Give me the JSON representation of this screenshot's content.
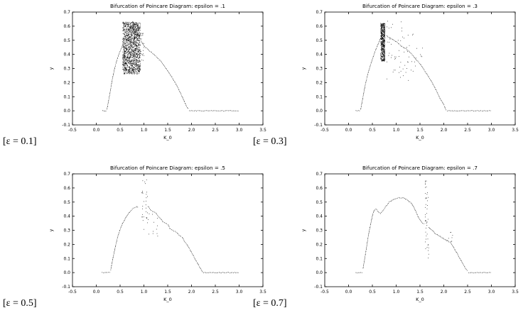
{
  "page": {
    "background": "#ffffff",
    "point_color": "#000000"
  },
  "captions": [
    {
      "text": "[ε = 0.1]"
    },
    {
      "text": "[ε = 0.3]"
    },
    {
      "text": "[ε = 0.5]"
    },
    {
      "text": "[ε = 0.7]"
    }
  ],
  "chart_data": [
    {
      "type": "scatter",
      "title": "Bifurcation of Poincare Diagram: epsilon = .1",
      "xlabel": "K_0",
      "ylabel": "y",
      "xlim": [
        -0.5,
        3.5
      ],
      "ylim": [
        -0.1,
        0.7
      ],
      "xticks": [
        -0.5,
        0.0,
        0.5,
        1.0,
        1.5,
        2.0,
        2.5,
        3.0,
        3.5
      ],
      "yticks": [
        -0.1,
        0.0,
        0.1,
        0.2,
        0.3,
        0.4,
        0.5,
        0.6,
        0.7
      ],
      "grid": false,
      "legend": null,
      "series": {
        "curves": [
          [
            [
              0.13,
              0.0
            ],
            [
              0.22,
              0.0
            ]
          ],
          [
            [
              0.22,
              0.01
            ],
            [
              0.28,
              0.12
            ],
            [
              0.33,
              0.22
            ],
            [
              0.38,
              0.3
            ],
            [
              0.43,
              0.36
            ],
            [
              0.48,
              0.41
            ],
            [
              0.53,
              0.45
            ],
            [
              0.57,
              0.49
            ]
          ],
          [
            [
              0.93,
              0.5
            ],
            [
              0.98,
              0.47
            ],
            [
              1.03,
              0.45
            ],
            [
              1.1,
              0.43
            ],
            [
              1.2,
              0.4
            ],
            [
              1.3,
              0.37
            ],
            [
              1.4,
              0.33
            ],
            [
              1.5,
              0.28
            ],
            [
              1.6,
              0.23
            ],
            [
              1.7,
              0.17
            ],
            [
              1.8,
              0.1
            ],
            [
              1.88,
              0.04
            ],
            [
              1.93,
              0.01
            ]
          ],
          [
            [
              1.95,
              0.0
            ],
            [
              3.0,
              0.0
            ]
          ]
        ],
        "regions": [
          {
            "x0": 0.55,
            "x1": 0.92,
            "y0": 0.26,
            "y1": 0.63,
            "n": 1500
          },
          {
            "x0": 0.9,
            "x1": 1.0,
            "y0": 0.35,
            "y1": 0.55,
            "n": 25
          }
        ]
      }
    },
    {
      "type": "scatter",
      "title": "Bifurcation of Poincare Diagram: epsilon = .3",
      "xlabel": "K_0",
      "ylabel": "y",
      "xlim": [
        -0.5,
        3.5
      ],
      "ylim": [
        -0.1,
        0.7
      ],
      "xticks": [
        -0.5,
        0.0,
        0.5,
        1.0,
        1.5,
        2.0,
        2.5,
        3.0,
        3.5
      ],
      "yticks": [
        -0.1,
        0.0,
        0.1,
        0.2,
        0.3,
        0.4,
        0.5,
        0.6,
        0.7
      ],
      "grid": false,
      "legend": null,
      "series": {
        "curves": [
          [
            [
              0.15,
              0.0
            ],
            [
              0.25,
              0.0
            ]
          ],
          [
            [
              0.25,
              0.01
            ],
            [
              0.3,
              0.1
            ],
            [
              0.35,
              0.19
            ],
            [
              0.4,
              0.26
            ],
            [
              0.45,
              0.32
            ],
            [
              0.5,
              0.37
            ],
            [
              0.55,
              0.42
            ],
            [
              0.6,
              0.46
            ],
            [
              0.64,
              0.49
            ],
            [
              0.67,
              0.52
            ]
          ],
          [
            [
              0.8,
              0.53
            ],
            [
              0.9,
              0.51
            ],
            [
              1.0,
              0.49
            ],
            [
              1.1,
              0.46
            ],
            [
              1.2,
              0.44
            ],
            [
              1.3,
              0.41
            ],
            [
              1.4,
              0.37
            ],
            [
              1.5,
              0.33
            ],
            [
              1.6,
              0.28
            ],
            [
              1.7,
              0.23
            ],
            [
              1.8,
              0.17
            ],
            [
              1.9,
              0.1
            ],
            [
              2.0,
              0.04
            ],
            [
              2.05,
              0.0
            ]
          ],
          [
            [
              2.07,
              0.0
            ],
            [
              3.0,
              0.0
            ]
          ]
        ],
        "regions": [
          {
            "x0": 0.67,
            "x1": 0.76,
            "y0": 0.35,
            "y1": 0.62,
            "n": 520
          },
          {
            "x0": 0.78,
            "x1": 1.35,
            "y0": 0.2,
            "y1": 0.64,
            "n": 55
          },
          {
            "x0": 1.35,
            "x1": 1.55,
            "y0": 0.3,
            "y1": 0.45,
            "n": 8
          }
        ]
      }
    },
    {
      "type": "scatter",
      "title": "Bifurcation of Poincare Diagram: epsilon = .5",
      "xlabel": "K_0",
      "ylabel": "y",
      "xlim": [
        -0.5,
        3.5
      ],
      "ylim": [
        -0.1,
        0.7
      ],
      "xticks": [
        -0.5,
        0.0,
        0.5,
        1.0,
        1.5,
        2.0,
        2.5,
        3.0,
        3.5
      ],
      "yticks": [
        -0.1,
        0.0,
        0.1,
        0.2,
        0.3,
        0.4,
        0.5,
        0.6,
        0.7
      ],
      "grid": false,
      "legend": null,
      "series": {
        "curves": [
          [
            [
              0.12,
              0.0
            ],
            [
              0.3,
              0.0
            ]
          ],
          [
            [
              0.3,
              0.02
            ],
            [
              0.35,
              0.11
            ],
            [
              0.4,
              0.19
            ],
            [
              0.45,
              0.26
            ],
            [
              0.5,
              0.31
            ],
            [
              0.55,
              0.35
            ],
            [
              0.6,
              0.38
            ],
            [
              0.65,
              0.41
            ],
            [
              0.7,
              0.43
            ],
            [
              0.75,
              0.45
            ],
            [
              0.8,
              0.46
            ],
            [
              0.85,
              0.47
            ],
            [
              0.88,
              0.46
            ]
          ],
          [
            [
              1.08,
              0.47
            ],
            [
              1.15,
              0.44
            ],
            [
              1.2,
              0.43
            ],
            [
              1.25,
              0.42
            ],
            [
              1.3,
              0.4
            ],
            [
              1.35,
              0.38
            ],
            [
              1.4,
              0.36
            ],
            [
              1.45,
              0.35
            ],
            [
              1.5,
              0.34
            ],
            [
              1.55,
              0.31
            ],
            [
              1.6,
              0.3
            ],
            [
              1.65,
              0.29
            ],
            [
              1.7,
              0.28
            ],
            [
              1.75,
              0.26
            ],
            [
              1.8,
              0.25
            ],
            [
              1.85,
              0.22
            ],
            [
              1.9,
              0.2
            ],
            [
              1.95,
              0.17
            ],
            [
              2.0,
              0.14
            ],
            [
              2.05,
              0.11
            ],
            [
              2.1,
              0.08
            ],
            [
              2.15,
              0.05
            ],
            [
              2.2,
              0.02
            ],
            [
              2.24,
              0.0
            ]
          ],
          [
            [
              2.25,
              0.0
            ],
            [
              3.0,
              0.0
            ]
          ]
        ],
        "regions": [
          {
            "x0": 0.95,
            "x1": 1.08,
            "y0": 0.3,
            "y1": 0.66,
            "n": 30
          },
          {
            "x0": 1.05,
            "x1": 1.3,
            "y0": 0.25,
            "y1": 0.45,
            "n": 12
          }
        ]
      }
    },
    {
      "type": "scatter",
      "title": "Bifurcation of Poincare Diagram: epsilon = .7",
      "xlabel": "K_0",
      "ylabel": "y",
      "xlim": [
        -0.5,
        3.5
      ],
      "ylim": [
        -0.1,
        0.7
      ],
      "xticks": [
        -0.5,
        0.0,
        0.5,
        1.0,
        1.5,
        2.0,
        2.5,
        3.0,
        3.5
      ],
      "yticks": [
        -0.1,
        0.0,
        0.1,
        0.2,
        0.3,
        0.4,
        0.5,
        0.6,
        0.7
      ],
      "grid": false,
      "legend": null,
      "series": {
        "curves": [
          [
            [
              0.15,
              0.0
            ],
            [
              0.3,
              0.0
            ]
          ],
          [
            [
              0.3,
              0.03
            ],
            [
              0.35,
              0.13
            ],
            [
              0.4,
              0.24
            ],
            [
              0.45,
              0.33
            ],
            [
              0.5,
              0.41
            ],
            [
              0.53,
              0.44
            ],
            [
              0.57,
              0.45
            ],
            [
              0.62,
              0.43
            ],
            [
              0.67,
              0.42
            ],
            [
              0.72,
              0.44
            ],
            [
              0.78,
              0.47
            ],
            [
              0.85,
              0.5
            ],
            [
              0.95,
              0.52
            ],
            [
              1.05,
              0.53
            ],
            [
              1.15,
              0.53
            ],
            [
              1.25,
              0.51
            ],
            [
              1.32,
              0.49
            ],
            [
              1.4,
              0.44
            ],
            [
              1.45,
              0.4
            ],
            [
              1.5,
              0.37
            ],
            [
              1.55,
              0.35
            ],
            [
              1.6,
              0.34
            ]
          ],
          [
            [
              1.68,
              0.32
            ],
            [
              1.75,
              0.3
            ],
            [
              1.8,
              0.28
            ],
            [
              1.9,
              0.26
            ],
            [
              2.0,
              0.24
            ],
            [
              2.1,
              0.22
            ],
            [
              2.15,
              0.21
            ],
            [
              2.2,
              0.18
            ],
            [
              2.25,
              0.15
            ],
            [
              2.3,
              0.12
            ],
            [
              2.35,
              0.09
            ],
            [
              2.4,
              0.06
            ],
            [
              2.45,
              0.03
            ],
            [
              2.5,
              0.01
            ]
          ],
          [
            [
              2.52,
              0.0
            ],
            [
              3.0,
              0.0
            ]
          ]
        ],
        "regions": [
          {
            "x0": 1.6,
            "x1": 1.68,
            "y0": 0.1,
            "y1": 0.65,
            "n": 45
          },
          {
            "x0": 2.05,
            "x1": 2.2,
            "y0": 0.2,
            "y1": 0.3,
            "n": 8
          }
        ]
      }
    }
  ]
}
